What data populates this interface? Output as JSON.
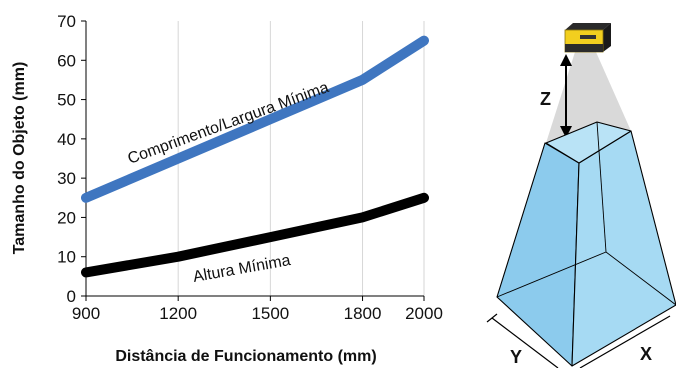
{
  "chart_data": {
    "type": "line",
    "xlabel": "Distância de Funcionamento (mm)",
    "ylabel": "Tamanho do Objeto (mm)",
    "xlim": [
      900,
      2000
    ],
    "ylim": [
      0,
      70
    ],
    "xticks": [
      "900",
      "1200",
      "1500",
      "1800",
      "2000"
    ],
    "yticks": [
      "0",
      "10",
      "20",
      "30",
      "40",
      "50",
      "60",
      "70"
    ],
    "grid": "vertical",
    "series": [
      {
        "name": "Comprimento/Largura Mínima",
        "color": "#3f76c0",
        "x": [
          900,
          1200,
          1500,
          1800,
          2000
        ],
        "y": [
          25,
          35,
          45,
          55,
          65
        ]
      },
      {
        "name": "Altura Mínima",
        "color": "#000000",
        "x": [
          900,
          1200,
          1500,
          1800,
          2000
        ],
        "y": [
          6,
          10,
          15,
          20,
          25
        ]
      }
    ]
  },
  "diagram": {
    "labels": {
      "z": "Z",
      "y": "Y",
      "x": "X"
    },
    "icons": {
      "camera": "camera-icon"
    },
    "colors": {
      "frustum": "#9dd3f0",
      "beam": "#d9d9d9",
      "camera_body": "#f2cf1f"
    }
  }
}
